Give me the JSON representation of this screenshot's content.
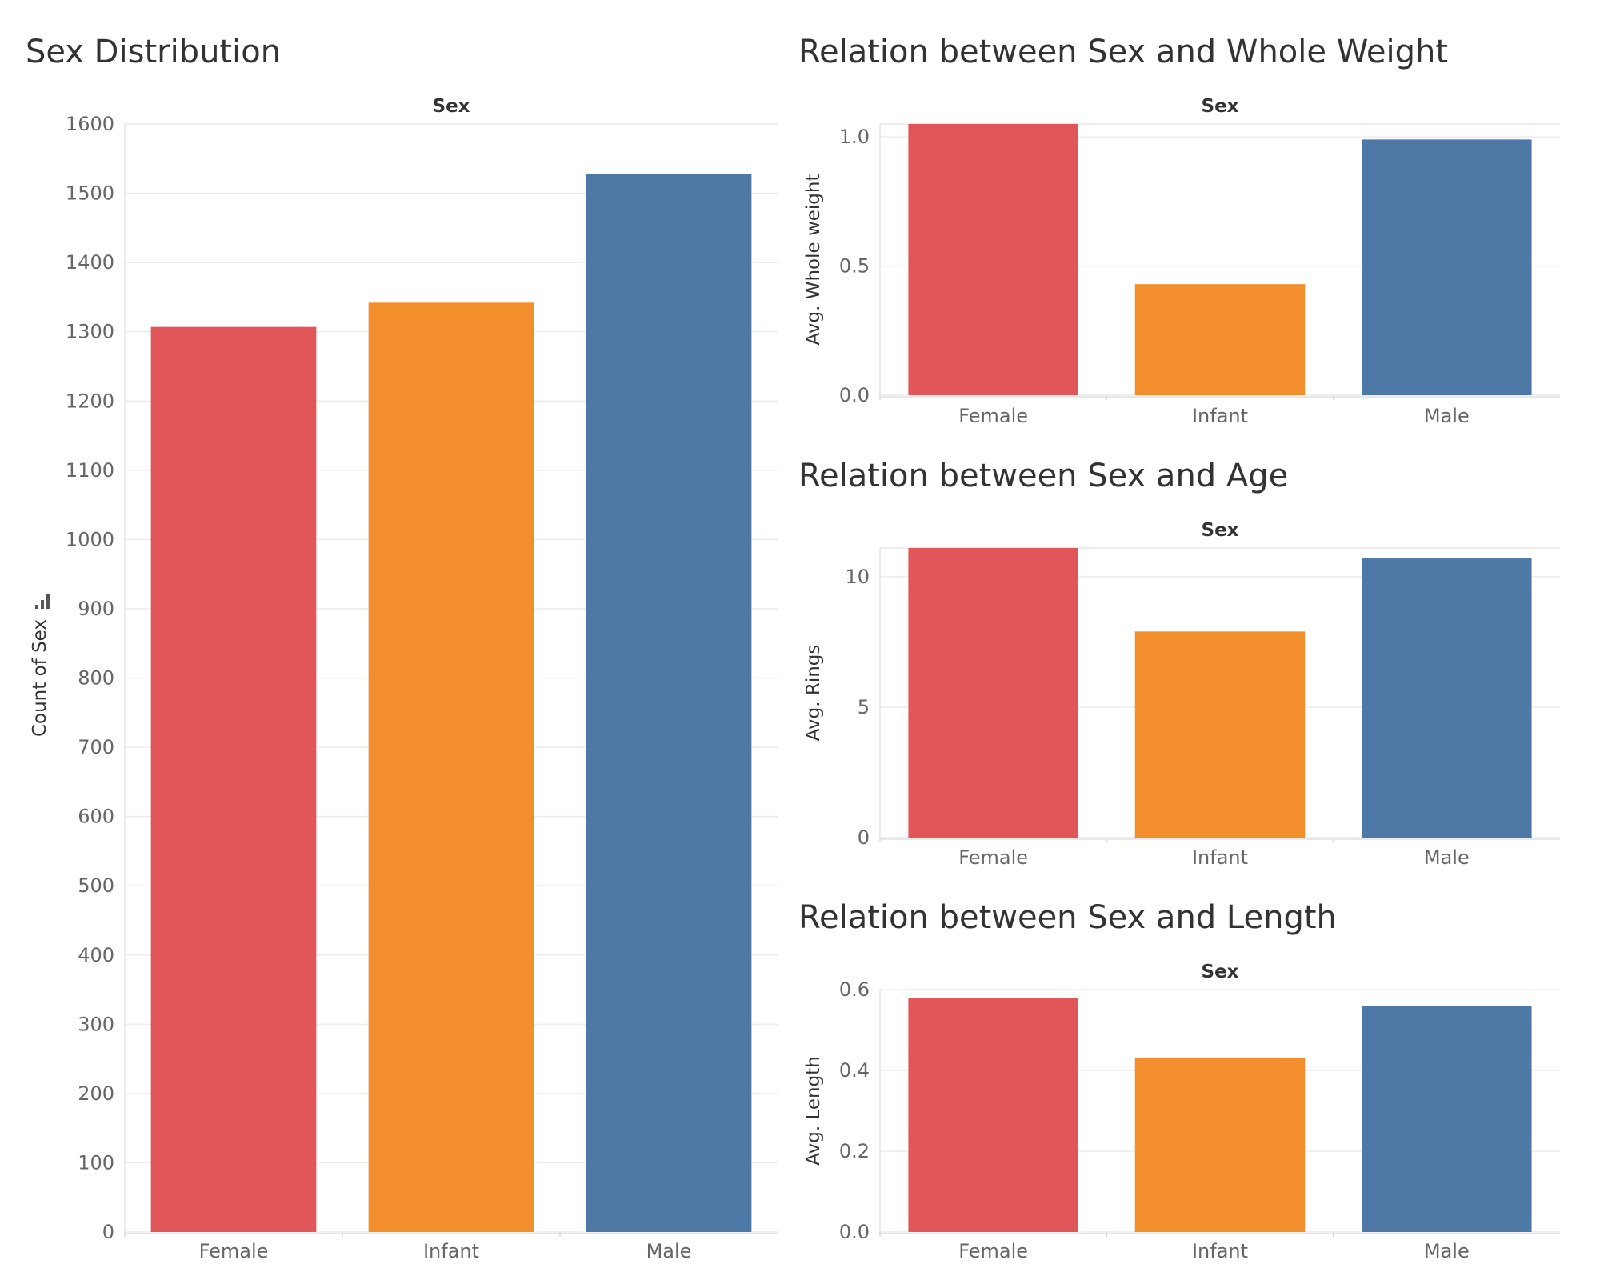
{
  "chart_data": [
    {
      "type": "bar",
      "title": "Sex Distribution",
      "column_header": "Sex",
      "xlabel": "",
      "ylabel": "Count of Sex",
      "categories": [
        "Female",
        "Infant",
        "Male"
      ],
      "values": [
        1307,
        1342,
        1528
      ],
      "ylim": [
        0,
        1600
      ],
      "yticks": [
        "0",
        "100",
        "200",
        "300",
        "400",
        "500",
        "600",
        "700",
        "800",
        "900",
        "1000",
        "1100",
        "1200",
        "1300",
        "1400",
        "1500",
        "1600"
      ],
      "grid": true,
      "colors": [
        "#e15759",
        "#f28e2b",
        "#4e79a7"
      ],
      "sort_icon": "bar-sort-icon"
    },
    {
      "type": "bar",
      "title": "Relation between Sex and Whole Weight",
      "column_header": "Sex",
      "xlabel": "",
      "ylabel": "Avg. Whole weight",
      "categories": [
        "Female",
        "Infant",
        "Male"
      ],
      "values": [
        1.05,
        0.43,
        0.99
      ],
      "ylim": [
        0,
        1.05
      ],
      "yticks": [
        "0.0",
        "0.5",
        "1.0"
      ],
      "grid": true,
      "colors": [
        "#e15759",
        "#f28e2b",
        "#4e79a7"
      ]
    },
    {
      "type": "bar",
      "title": "Relation between Sex and Age",
      "column_header": "Sex",
      "xlabel": "",
      "ylabel": "Avg. Rings",
      "categories": [
        "Female",
        "Infant",
        "Male"
      ],
      "values": [
        11.1,
        7.9,
        10.7
      ],
      "ylim": [
        0,
        11.1
      ],
      "yticks": [
        "0",
        "5",
        "10"
      ],
      "grid": true,
      "colors": [
        "#e15759",
        "#f28e2b",
        "#4e79a7"
      ]
    },
    {
      "type": "bar",
      "title": "Relation between Sex and Length",
      "column_header": "Sex",
      "xlabel": "",
      "ylabel": "Avg. Length",
      "categories": [
        "Female",
        "Infant",
        "Male"
      ],
      "values": [
        0.58,
        0.43,
        0.56
      ],
      "ylim": [
        0,
        0.6
      ],
      "yticks": [
        "0.0",
        "0.2",
        "0.4",
        "0.6"
      ],
      "grid": true,
      "colors": [
        "#e15759",
        "#f28e2b",
        "#4e79a7"
      ]
    }
  ]
}
